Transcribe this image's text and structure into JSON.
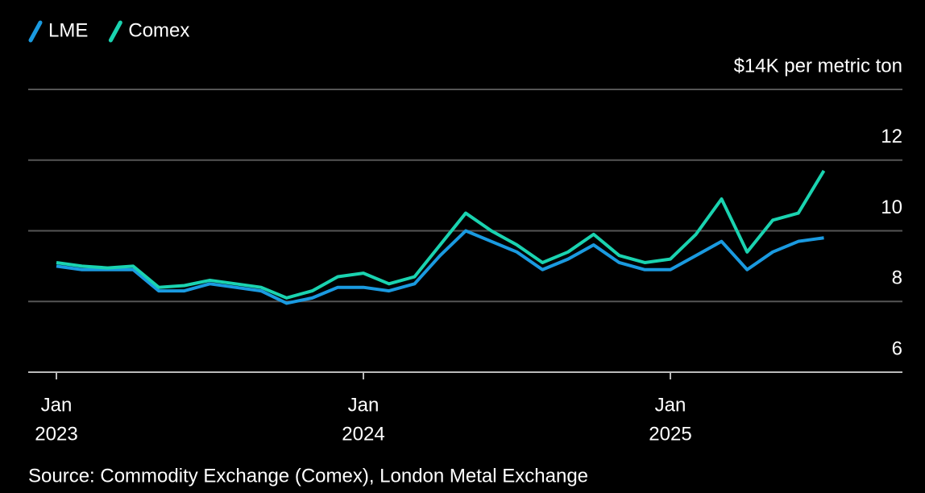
{
  "chart_data": {
    "type": "line",
    "x": [
      "2023-01",
      "2023-02",
      "2023-03",
      "2023-04",
      "2023-05",
      "2023-06",
      "2023-07",
      "2023-08",
      "2023-09",
      "2023-10",
      "2023-11",
      "2023-12",
      "2024-01",
      "2024-02",
      "2024-03",
      "2024-04",
      "2024-05",
      "2024-06",
      "2024-07",
      "2024-08",
      "2024-09",
      "2024-10",
      "2024-11",
      "2024-12",
      "2025-01",
      "2025-02",
      "2025-03",
      "2025-04",
      "2025-05",
      "2025-06",
      "2025-07"
    ],
    "series": [
      {
        "name": "LME",
        "color": "#1a9ae0",
        "values": [
          9.0,
          8.9,
          8.9,
          8.9,
          8.3,
          8.3,
          8.5,
          8.4,
          8.3,
          7.95,
          8.1,
          8.4,
          8.4,
          8.3,
          8.5,
          9.3,
          10.0,
          9.7,
          9.4,
          8.9,
          9.2,
          9.6,
          9.1,
          8.9,
          8.9,
          9.3,
          9.7,
          8.9,
          9.4,
          9.7,
          9.8
        ]
      },
      {
        "name": "Comex",
        "color": "#1ad3b0",
        "values": [
          9.1,
          9.0,
          8.95,
          9.0,
          8.4,
          8.45,
          8.6,
          8.5,
          8.4,
          8.1,
          8.3,
          8.7,
          8.8,
          8.5,
          8.7,
          9.6,
          10.5,
          10.0,
          9.6,
          9.1,
          9.4,
          9.9,
          9.3,
          9.1,
          9.2,
          9.9,
          10.9,
          9.4,
          10.3,
          10.5,
          11.7
        ]
      }
    ],
    "ylim": [
      6,
      14
    ],
    "yticks": [
      6,
      8,
      10,
      12,
      {
        "value": 14,
        "label": "$14K per metric ton"
      }
    ],
    "xticks": [
      {
        "value": "2023-01",
        "label": [
          "Jan",
          "2023"
        ]
      },
      {
        "value": "2024-01",
        "label": [
          "Jan",
          "2024"
        ]
      },
      {
        "value": "2025-01",
        "label": [
          "Jan",
          "2025"
        ]
      }
    ],
    "grid": true,
    "legend": "top-left",
    "source": "Source: Commodity Exchange (Comex), London Metal Exchange"
  }
}
